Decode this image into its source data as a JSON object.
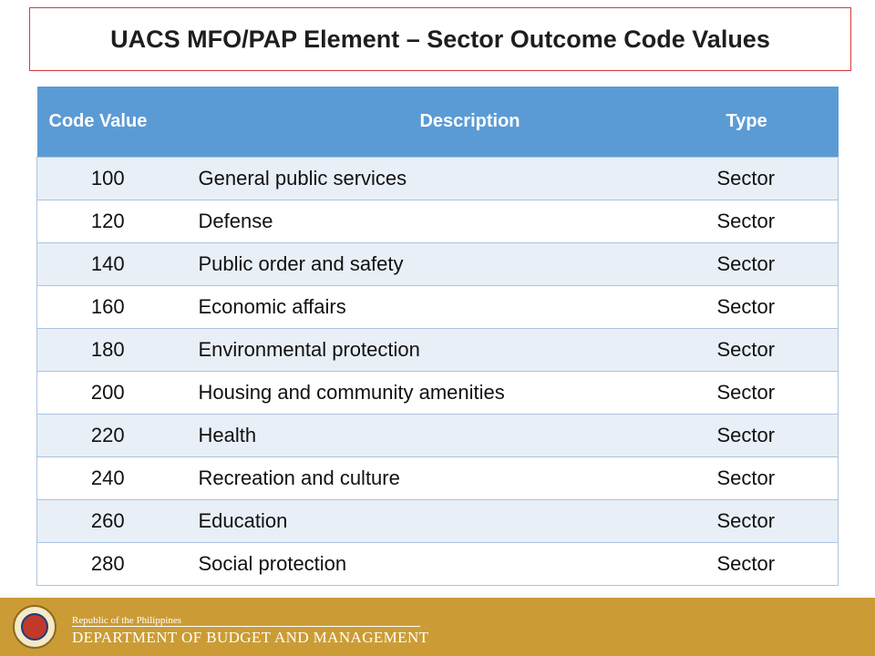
{
  "title": "UACS MFO/PAP Element – Sector Outcome Code Values",
  "table": {
    "headers": [
      "Code Value",
      "Description",
      "Type"
    ],
    "rows": [
      [
        "100",
        "General public services",
        "Sector"
      ],
      [
        "120",
        "Defense",
        "Sector"
      ],
      [
        "140",
        "Public order and safety",
        "Sector"
      ],
      [
        "160",
        "Economic affairs",
        "Sector"
      ],
      [
        "180",
        "Environmental protection",
        "Sector"
      ],
      [
        "200",
        "Housing and community amenities",
        "Sector"
      ],
      [
        "220",
        "Health",
        "Sector"
      ],
      [
        "240",
        "Recreation and culture",
        "Sector"
      ],
      [
        "260",
        "Education",
        "Sector"
      ],
      [
        "280",
        "Social protection",
        "Sector"
      ]
    ]
  },
  "footer": {
    "small_text": "Republic of the Philippines",
    "big_text": "DEPARTMENT OF BUDGET AND MANAGEMENT"
  },
  "colors": {
    "header_bg": "#5b9bd5",
    "row_alt_bg": "#e9eff7",
    "footer_bg": "#cb9c35",
    "title_border": "#d23c3c"
  }
}
